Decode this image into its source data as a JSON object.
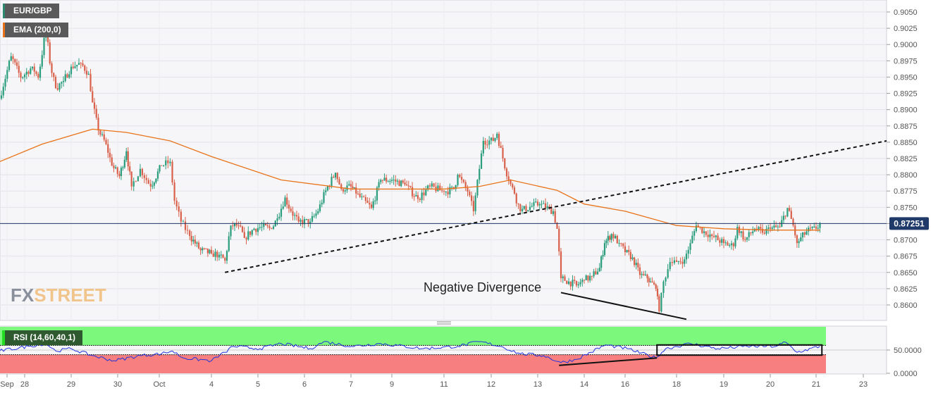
{
  "legend": {
    "symbol": "EUR/GBP",
    "ema": "EMA (200,0)",
    "rsi": "RSI (14,60,40,1)"
  },
  "logo": {
    "part1": "FX",
    "part2": "STREET"
  },
  "colors": {
    "up": "#2a9d7c",
    "down": "#d9604a",
    "ema": "#e8731a",
    "rsi": "#2233dd",
    "last_price_bg": "#1f3a68",
    "rsi_upper_zone": "#7cf97c",
    "rsi_lower_zone": "#f87f7f"
  },
  "chart_data": [
    {
      "type": "candlestick",
      "title": "",
      "series": [
        {
          "name": "EUR/GBP"
        },
        {
          "name": "EMA (200,0)"
        }
      ],
      "y_ticks": [
        "0.9050",
        "0.9025",
        "0.9000",
        "0.8975",
        "0.8950",
        "0.8925",
        "0.8900",
        "0.8875",
        "0.8850",
        "0.8825",
        "0.8800",
        "0.8775",
        "0.8750",
        "0.8725",
        "0.8700",
        "0.8675",
        "0.8650",
        "0.8625",
        "0.8600"
      ],
      "ylim": [
        0.8585,
        0.9067
      ],
      "last_price": "0.87251",
      "x_ticks": [
        "Sep",
        "28",
        "29",
        "30",
        "Oct",
        "4",
        "5",
        "6",
        "7",
        "9",
        "11",
        "12",
        "13",
        "14",
        "16",
        "18",
        "19",
        "20",
        "21",
        "23"
      ],
      "grid": true,
      "price_path": [
        [
          "Sep 27 11:00",
          0.8917
        ],
        [
          "Sep 27 17:00",
          0.8982
        ],
        [
          "Sep 27 22:00",
          0.8949
        ],
        [
          "Sep 28 04:00",
          0.8966
        ],
        [
          "Sep 28 07:00",
          0.8949
        ],
        [
          "Sep 28 11:00",
          0.9025
        ],
        [
          "Sep 28 13:00",
          0.8971
        ],
        [
          "Sep 28 16:00",
          0.8933
        ],
        [
          "Sep 28 20:00",
          0.8944
        ],
        [
          "Sep 29 00:00",
          0.8966
        ],
        [
          "Sep 29 05:00",
          0.8971
        ],
        [
          "Sep 29 09:00",
          0.8955
        ],
        [
          "Sep 29 11:00",
          0.8911
        ],
        [
          "Sep 29 14:00",
          0.8868
        ],
        [
          "Sep 29 18:00",
          0.8847
        ],
        [
          "Sep 29 21:00",
          0.8814
        ],
        [
          "Sep 30 01:00",
          0.8798
        ],
        [
          "Sep 30 05:00",
          0.8836
        ],
        [
          "Sep 30 08:00",
          0.8782
        ],
        [
          "Sep 30 13:00",
          0.8809
        ],
        [
          "Sep 30 19:00",
          0.8782
        ],
        [
          "Oct 1 01:00",
          0.8814
        ],
        [
          "Oct 1 05:00",
          0.882
        ],
        [
          "Oct 1 07:00",
          0.876
        ],
        [
          "Oct 1 10:00",
          0.8728
        ],
        [
          "Oct 1 14:00",
          0.8706
        ],
        [
          "Oct 1 19:00",
          0.8684
        ],
        [
          "Oct 4 00:00",
          0.8679
        ],
        [
          "Oct 4 04:00",
          0.8677
        ],
        [
          "Oct 4 07:00",
          0.8668
        ],
        [
          "Oct 4 10:00",
          0.8722
        ],
        [
          "Oct 4 14:00",
          0.8722
        ],
        [
          "Oct 4 17:00",
          0.8703
        ],
        [
          "Oct 4 22:00",
          0.8717
        ],
        [
          "Oct 5 02:00",
          0.872
        ],
        [
          "Oct 5 07:00",
          0.8717
        ],
        [
          "Oct 5 10:00",
          0.8733
        ],
        [
          "Oct 5 14:00",
          0.8765
        ],
        [
          "Oct 5 17:00",
          0.8744
        ],
        [
          "Oct 5 21:00",
          0.8728
        ],
        [
          "Oct 6 03:00",
          0.8728
        ],
        [
          "Oct 6 07:00",
          0.8744
        ],
        [
          "Oct 6 11:00",
          0.8776
        ],
        [
          "Oct 6 16:00",
          0.8803
        ],
        [
          "Oct 6 19:00",
          0.8778
        ],
        [
          "Oct 7 00:00",
          0.8782
        ],
        [
          "Oct 7 06:00",
          0.8771
        ],
        [
          "Oct 8 00:00",
          0.8749
        ],
        [
          "Oct 8 11:00",
          0.8792
        ],
        [
          "Oct 9 00:00",
          0.8792
        ],
        [
          "Oct 9 12:00",
          0.8785
        ],
        [
          "Oct 10 00:00",
          0.8763
        ],
        [
          "Oct 10 11:00",
          0.8782
        ],
        [
          "Oct 11 00:00",
          0.8774
        ],
        [
          "Oct 11 05:00",
          0.8778
        ],
        [
          "Oct 11 07:00",
          0.88
        ],
        [
          "Oct 11 12:00",
          0.8774
        ],
        [
          "Oct 11 15:00",
          0.8744
        ],
        [
          "Oct 11 18:00",
          0.8809
        ],
        [
          "Oct 11 20:00",
          0.8852
        ],
        [
          "Oct 12 01:00",
          0.8852
        ],
        [
          "Oct 12 03:00",
          0.8863
        ],
        [
          "Oct 12 06:00",
          0.8825
        ],
        [
          "Oct 12 09:00",
          0.8792
        ],
        [
          "Oct 12 12:00",
          0.8771
        ],
        [
          "Oct 12 15:00",
          0.8744
        ],
        [
          "Oct 12 21:00",
          0.8752
        ],
        [
          "Oct 13 01:00",
          0.8755
        ],
        [
          "Oct 13 08:00",
          0.8744
        ],
        [
          "Oct 13 10:00",
          0.8717
        ],
        [
          "Oct 13 12:00",
          0.8641
        ],
        [
          "Oct 13 16:00",
          0.8636
        ],
        [
          "Oct 13 20:00",
          0.863
        ],
        [
          "Oct 14 00:00",
          0.8638
        ],
        [
          "Oct 14 09:00",
          0.8644
        ],
        [
          "Oct 14 18:00",
          0.8657
        ],
        [
          "Oct 15 00:00",
          0.8695
        ],
        [
          "Oct 15 08:00",
          0.8709
        ],
        [
          "Oct 15 17:00",
          0.8695
        ],
        [
          "Oct 16 00:00",
          0.8681
        ],
        [
          "Oct 16 07:00",
          0.8673
        ],
        [
          "Oct 16 14:00",
          0.8646
        ],
        [
          "Oct 16 21:00",
          0.8641
        ],
        [
          "Oct 17 00:00",
          0.8636
        ],
        [
          "Oct 17 05:00",
          0.8625
        ],
        [
          "Oct 17 08:00",
          0.859
        ],
        [
          "Oct 17 12:00",
          0.8636
        ],
        [
          "Oct 17 18:00",
          0.8666
        ],
        [
          "Oct 18 00:00",
          0.8666
        ],
        [
          "Oct 18 04:00",
          0.867
        ],
        [
          "Oct 18 07:00",
          0.8695
        ],
        [
          "Oct 18 10:00",
          0.8722
        ],
        [
          "Oct 18 14:00",
          0.8713
        ],
        [
          "Oct 18 18:00",
          0.8706
        ],
        [
          "Oct 19 00:00",
          0.8695
        ],
        [
          "Oct 19 05:00",
          0.869
        ],
        [
          "Oct 19 07:00",
          0.872
        ],
        [
          "Oct 19 11:00",
          0.87
        ],
        [
          "Oct 19 16:00",
          0.8717
        ],
        [
          "Oct 19 20:00",
          0.8711
        ],
        [
          "Oct 20 00:00",
          0.8717
        ],
        [
          "Oct 20 05:00",
          0.872
        ],
        [
          "Oct 20 09:00",
          0.8749
        ],
        [
          "Oct 20 12:00",
          0.8722
        ],
        [
          "Oct 20 14:00",
          0.8695
        ],
        [
          "Oct 20 19:00",
          0.8713
        ],
        [
          "Oct 21 00:00",
          0.8717
        ],
        [
          "Oct 21 04:00",
          0.87251
        ]
      ],
      "ema_path": [
        [
          "Sep 27 11:00",
          0.882
        ],
        [
          "Sep 28 09:00",
          0.8847
        ],
        [
          "Sep 29 11:00",
          0.887
        ],
        [
          "Sep 30 05:00",
          0.8865
        ],
        [
          "Oct 1 05:00",
          0.8852
        ],
        [
          "Oct 4 00:00",
          0.8828
        ],
        [
          "Oct 5 12:00",
          0.8792
        ],
        [
          "Oct 7 01:00",
          0.8778
        ],
        [
          "Oct 11 00:00",
          0.8778
        ],
        [
          "Oct 11 18:00",
          0.8782
        ],
        [
          "Oct 12 10:00",
          0.8792
        ],
        [
          "Oct 13 10:00",
          0.8776
        ],
        [
          "Oct 14 00:00",
          0.8755
        ],
        [
          "Oct 16 00:00",
          0.8744
        ],
        [
          "Oct 18 00:00",
          0.8722
        ],
        [
          "Oct 19 00:00",
          0.8717
        ],
        [
          "Oct 20 00:00",
          0.8715
        ],
        [
          "Oct 21 04:00",
          0.8715
        ]
      ],
      "trendlines": [
        {
          "style": "dashed",
          "from": [
            "Oct 4 07:00",
            0.865
          ],
          "to": [
            "Oct 24 00:00",
            0.8852
          ]
        },
        {
          "style": "solid",
          "from": [
            "Oct 13 12:00",
            0.8619
          ],
          "to": [
            "Oct 18 05:00",
            0.8578
          ]
        }
      ],
      "annotations": [
        {
          "text": "Negative Divergence"
        }
      ]
    },
    {
      "type": "line",
      "series": [
        {
          "name": "RSI (14,60,40,1)"
        }
      ],
      "ylim": [
        0,
        100
      ],
      "y_ticks": [
        "50.0000",
        "0.0000"
      ],
      "upper_band": 60,
      "lower_band": 40,
      "values": [
        [
          "Sep 27 11:00",
          48
        ],
        [
          "Sep 28 02:00",
          58
        ],
        [
          "Sep 28 11:00",
          64
        ],
        [
          "Sep 28 16:00",
          48
        ],
        [
          "Sep 29 00:00",
          53
        ],
        [
          "Sep 29 11:00",
          38
        ],
        [
          "Sep 29 22:00",
          27
        ],
        [
          "Sep 30 13:00",
          38
        ],
        [
          "Oct 1 01:00",
          42
        ],
        [
          "Oct 1 06:00",
          48
        ],
        [
          "Oct 1 11:00",
          33
        ],
        [
          "Oct 4 00:00",
          27
        ],
        [
          "Oct 4 07:00",
          45
        ],
        [
          "Oct 4 11:00",
          58
        ],
        [
          "Oct 5 01:00",
          53
        ],
        [
          "Oct 5 12:00",
          64
        ],
        [
          "Oct 6 03:00",
          53
        ],
        [
          "Oct 6 10:00",
          68
        ],
        [
          "Oct 7 01:00",
          58
        ],
        [
          "Oct 8 11:00",
          64
        ],
        [
          "Oct 10 05:00",
          53
        ],
        [
          "Oct 11 07:00",
          58
        ],
        [
          "Oct 11 18:00",
          68
        ],
        [
          "Oct 12 05:00",
          58
        ],
        [
          "Oct 12 15:00",
          42
        ],
        [
          "Oct 13 03:00",
          38
        ],
        [
          "Oct 13 12:00",
          23
        ],
        [
          "Oct 13 20:00",
          30
        ],
        [
          "Oct 15 01:00",
          61
        ],
        [
          "Oct 16 02:00",
          53
        ],
        [
          "Oct 17 05:00",
          33
        ],
        [
          "Oct 17 14:00",
          53
        ],
        [
          "Oct 18 07:00",
          64
        ],
        [
          "Oct 18 21:00",
          53
        ],
        [
          "Oct 19 12:00",
          58
        ],
        [
          "Oct 20 03:00",
          58
        ],
        [
          "Oct 20 08:00",
          67
        ],
        [
          "Oct 20 14:00",
          45
        ],
        [
          "Oct 21 04:00",
          58
        ]
      ],
      "trendline": {
        "from": [
          "Oct 13 11:00",
          17
        ],
        "to": [
          "Oct 17 06:00",
          33
        ]
      },
      "box": {
        "from": [
          "Oct 17 06:00",
          61
        ],
        "to": [
          "Oct 21 06:00",
          39
        ]
      }
    }
  ]
}
